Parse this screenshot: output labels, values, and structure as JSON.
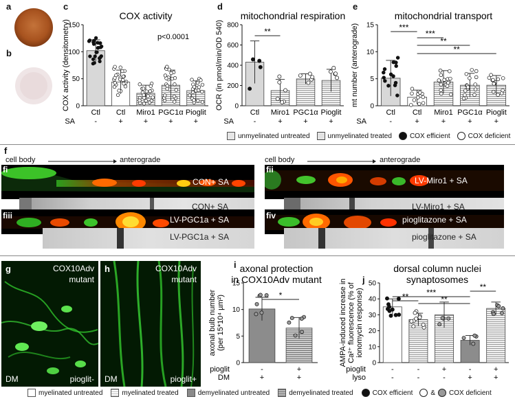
{
  "panels": {
    "a": "a",
    "b": "b",
    "c": "c",
    "d": "d",
    "e": "e",
    "f": "f",
    "g": "g",
    "h": "h",
    "i": "i",
    "j": "j",
    "fi": "fi",
    "fii": "fii",
    "fiii": "fiii",
    "fiv": "fiv"
  },
  "top_legend": {
    "unmyel_untreated": "unmyelinated untreated",
    "unmyel_treated": "unmyelinated treated",
    "cox_eff": "COX efficient",
    "cox_def": "COX deficient"
  },
  "bottom_legend": {
    "myel_untreated": "myelinated untreated",
    "myel_treated": "myelinated treated",
    "demyel_untreated": "demyelinated untreated",
    "demyel_treated": "demyelinated treated",
    "cox_eff": "COX efficient",
    "amp": "&",
    "cox_def": "COX deficient"
  },
  "f_section": {
    "left_header_start": "cell body",
    "left_header_end": "anterograde",
    "right_header_start": "cell body",
    "right_header_end": "anterograde",
    "fi_img": "CON+ SA",
    "fi_kymo": "CON+ SA",
    "fii_img": "LV-Miro1 + SA",
    "fii_kymo": "LV-Miro1 + SA",
    "fiii_img": "LV-PGC1a + SA",
    "fiii_kymo": "LV-PGC1a + SA",
    "fiv_img": "pioglitazone + SA",
    "fiv_kymo": "pioglitazone + SA"
  },
  "micrographs": {
    "g_top": "COX10Adv",
    "g_top2": "mutant",
    "g_bl": "DM",
    "g_br": "pioglit-",
    "h_top": "COX10Adv",
    "h_top2": "mutant",
    "h_bl": "DM",
    "h_br": "pioglit+"
  },
  "chart_data": [
    {
      "id": "c",
      "type": "bar",
      "title": "COX activity",
      "ylabel": "COX activity (densitometry)",
      "ylim": [
        0,
        150
      ],
      "yticks": [
        "0",
        "50",
        "100",
        "150"
      ],
      "annotation": "p<0.0001",
      "categories": [
        "Ctl",
        "Ctl",
        "Miro1",
        "PGC1α",
        "Pioglit"
      ],
      "sa_label": "SA",
      "sa": [
        "-",
        "+",
        "+",
        "+",
        "+"
      ],
      "values": [
        102,
        44,
        23,
        38,
        28
      ],
      "errors": [
        20,
        22,
        15,
        28,
        18
      ],
      "fills": [
        "solid-gray",
        "white",
        "stripe",
        "stripe",
        "stripe"
      ]
    },
    {
      "id": "d",
      "type": "bar",
      "title": "mitochondrial respiration",
      "ylabel": "OCR (in pmol/min/OD 540)",
      "ylim": [
        0,
        800
      ],
      "yticks": [
        "0",
        "200",
        "400",
        "600",
        "800"
      ],
      "categories": [
        "Ctl",
        "Miro1",
        "PGC1α",
        "Pioglit"
      ],
      "sa_label": "SA",
      "sa": [
        "-",
        "+",
        "+",
        "+"
      ],
      "values": [
        430,
        150,
        265,
        250
      ],
      "errors": [
        210,
        110,
        50,
        110
      ],
      "significance": [
        {
          "from": 0,
          "to": 1,
          "label": "**"
        }
      ],
      "fills": [
        "solid-gray",
        "stripe",
        "stripe",
        "stripe"
      ]
    },
    {
      "id": "e",
      "type": "bar",
      "title": "mitochondrial transport",
      "ylabel": "mt number (anterograde)",
      "ylim": [
        0,
        15
      ],
      "yticks": [
        "0",
        "5",
        "10",
        "15"
      ],
      "categories": [
        "Ctl",
        "Ctl",
        "Miro1",
        "PGC1α",
        "Pioglit"
      ],
      "sa_label": "SA",
      "sa": [
        "-",
        "+",
        "+",
        "+",
        "+"
      ],
      "values": [
        5.1,
        1.6,
        4.4,
        3.8,
        3.8
      ],
      "errors": [
        3.3,
        1.3,
        2.1,
        2.2,
        1.8
      ],
      "significance": [
        {
          "from": 0,
          "to": 1,
          "label": "***"
        },
        {
          "from": 1,
          "to": 2,
          "label": "***"
        },
        {
          "from": 1,
          "to": 3,
          "label": "**"
        },
        {
          "from": 1,
          "to": 4,
          "label": "**"
        }
      ],
      "fills": [
        "solid-gray",
        "white",
        "stripe",
        "stripe",
        "stripe"
      ]
    },
    {
      "id": "i",
      "type": "bar",
      "title": "axonal protection",
      "title2": "in COX10Adv mutant",
      "ylabel": "axonal bulb number",
      "ylabel2": "(per 15*10⁴ µm²)",
      "ylim": [
        0,
        15
      ],
      "yticks": [
        "0",
        "5",
        "10",
        "15"
      ],
      "categories": [
        "",
        ""
      ],
      "row1_label": "pioglit",
      "row1": [
        "-",
        "+"
      ],
      "row2_label": "DM",
      "row2": [
        "+",
        "+"
      ],
      "values": [
        10.1,
        6.5
      ],
      "errors": [
        2.2,
        2.0
      ],
      "significance": [
        {
          "from": 0,
          "to": 1,
          "label": "*"
        }
      ],
      "fills": [
        "solid-dark",
        "stripe-dark"
      ]
    },
    {
      "id": "j",
      "type": "bar",
      "title": "dorsal column nuclei",
      "title2": "synaptosomes",
      "ylabel": "AMPA-induced increase in",
      "ylabel2": "Ca²⁺ fluorescence (% of",
      "ylabel3": "ionomycin response)",
      "ylim": [
        0,
        50
      ],
      "yticks": [
        "0",
        "10",
        "20",
        "30",
        "40",
        "50"
      ],
      "categories": [
        "",
        "",
        "",
        "",
        ""
      ],
      "row1_label": "pioglit",
      "row1": [
        "-",
        "-",
        "+",
        "-",
        "+"
      ],
      "row2_label": "lyso",
      "row2": [
        "-",
        "-",
        "-",
        "+",
        "+"
      ],
      "values": [
        35,
        27,
        30,
        14,
        34
      ],
      "errors": [
        5,
        4,
        8,
        3,
        4
      ],
      "significance": [
        {
          "from": 0,
          "to": 1,
          "label": "**"
        },
        {
          "from": 0,
          "to": 3,
          "label": "***"
        },
        {
          "from": 1,
          "to": 3,
          "label": "**"
        },
        {
          "from": 3,
          "to": 4,
          "label": "**"
        }
      ],
      "fills": [
        "white",
        "stripe",
        "stripe",
        "solid-dark",
        "stripe"
      ]
    }
  ]
}
